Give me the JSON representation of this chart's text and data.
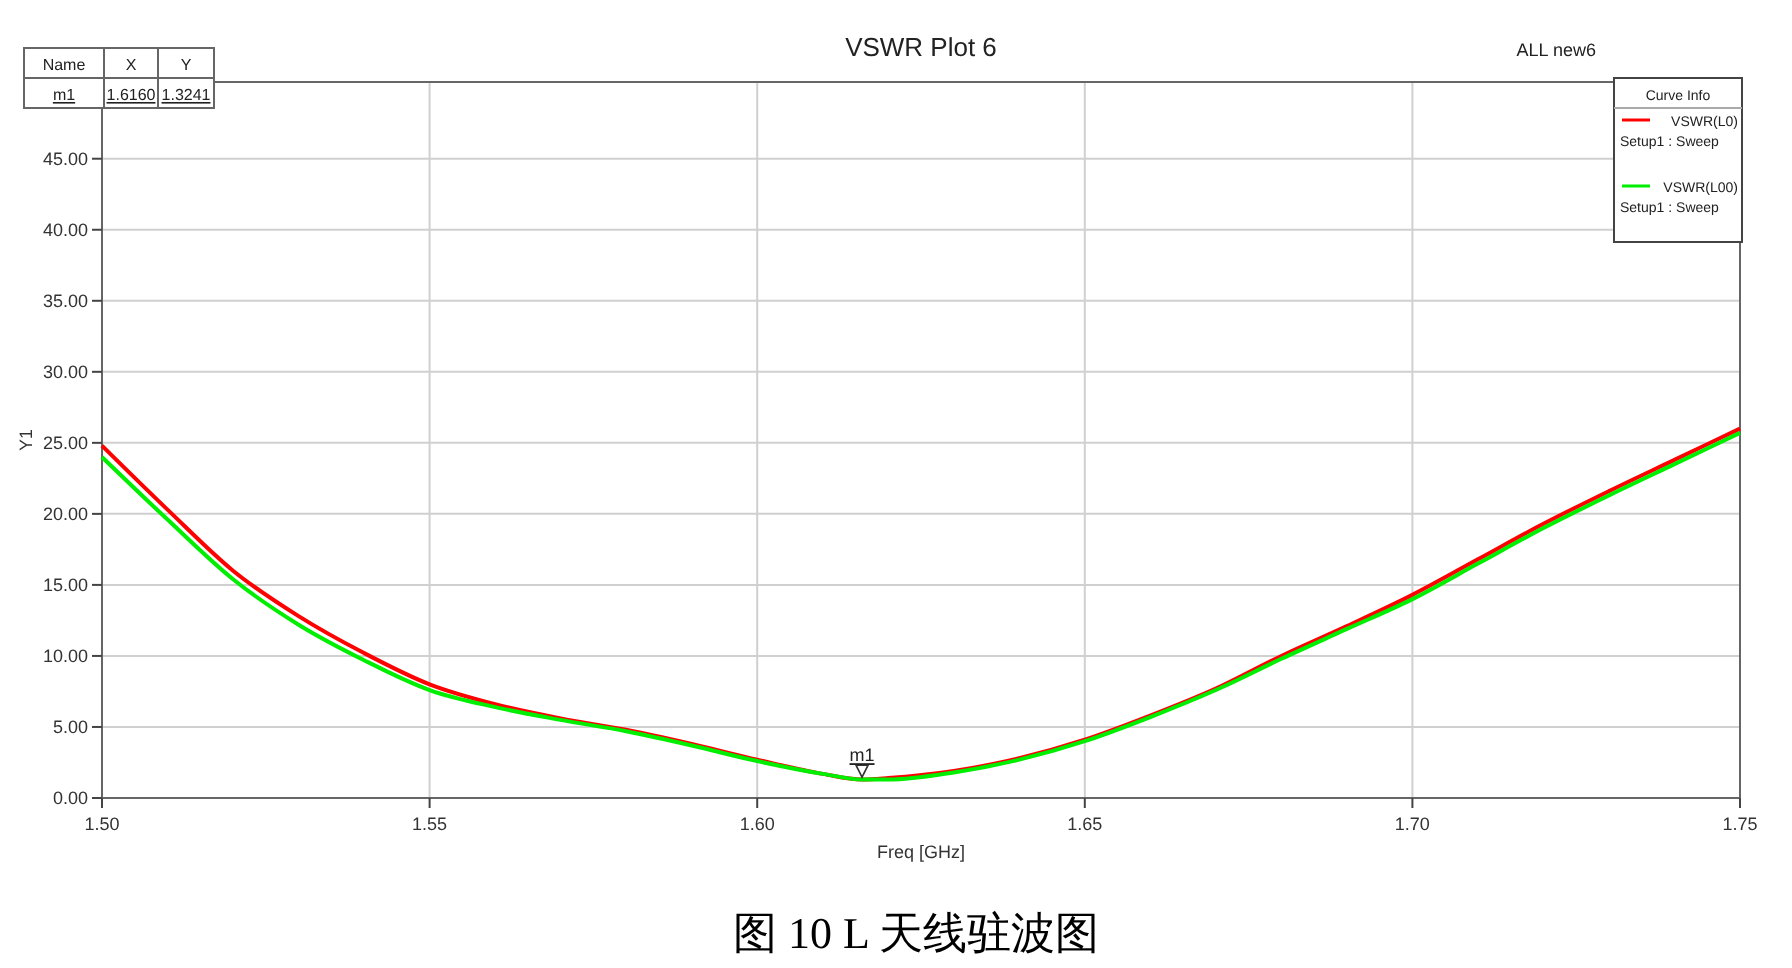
{
  "chart_data": {
    "type": "line",
    "title": "VSWR Plot 6",
    "xlabel": "Freq [GHz]",
    "ylabel": "Y1",
    "legend_title": "Curve Info",
    "legend": "top right",
    "grid": true,
    "line_style": "solid",
    "xlim": [
      1.5,
      1.75
    ],
    "ylim": [
      0,
      50.4
    ],
    "xticks": [
      {
        "value": 1.5,
        "label": "1.50"
      },
      {
        "value": 1.55,
        "label": "1.55"
      },
      {
        "value": 1.6,
        "label": "1.60"
      },
      {
        "value": 1.65,
        "label": "1.65"
      },
      {
        "value": 1.7,
        "label": "1.70"
      },
      {
        "value": 1.75,
        "label": "1.75"
      }
    ],
    "yticks": [
      {
        "value": 0,
        "label": "0.00"
      },
      {
        "value": 5,
        "label": "5.00"
      },
      {
        "value": 10,
        "label": "10.00"
      },
      {
        "value": 15,
        "label": "15.00"
      },
      {
        "value": 20,
        "label": "20.00"
      },
      {
        "value": 25,
        "label": "25.00"
      },
      {
        "value": 30,
        "label": "30.00"
      },
      {
        "value": 35,
        "label": "35.00"
      },
      {
        "value": 40,
        "label": "40.00"
      },
      {
        "value": 45,
        "label": "45.00"
      }
    ],
    "x": [
      1.5,
      1.51,
      1.52,
      1.53,
      1.54,
      1.55,
      1.56,
      1.57,
      1.58,
      1.59,
      1.6,
      1.61,
      1.616,
      1.62,
      1.63,
      1.64,
      1.65,
      1.66,
      1.67,
      1.68,
      1.69,
      1.7,
      1.71,
      1.72,
      1.73,
      1.74,
      1.75
    ],
    "series": [
      {
        "name": "VSWR(L0)\nSetup1 : Sweep",
        "color": "#ff0000",
        "values": [
          24.8,
          20.3,
          16.0,
          12.8,
          10.2,
          8.0,
          6.6,
          5.6,
          4.8,
          3.8,
          2.7,
          1.7,
          1.3,
          1.4,
          1.9,
          2.8,
          4.1,
          5.8,
          7.7,
          10.0,
          12.1,
          14.3,
          16.8,
          19.3,
          21.6,
          23.8,
          26.0
        ]
      },
      {
        "name": "VSWR(L00)\nSetup1 : Sweep",
        "color": "#00ee00",
        "values": [
          24.0,
          19.6,
          15.4,
          12.2,
          9.7,
          7.6,
          6.4,
          5.5,
          4.7,
          3.7,
          2.6,
          1.7,
          1.3,
          1.3,
          1.8,
          2.7,
          4.0,
          5.7,
          7.6,
          9.8,
          11.9,
          14.0,
          16.5,
          19.0,
          21.3,
          23.5,
          25.7
        ]
      }
    ],
    "annotations": [
      "ALL new6",
      {
        "text": "m1",
        "x": 1.616,
        "y": 1.3241
      },
      "Name",
      "X",
      "Y",
      "m1",
      "1.6160",
      "1.3241",
      "图 10 L 天线驻波图"
    ]
  }
}
